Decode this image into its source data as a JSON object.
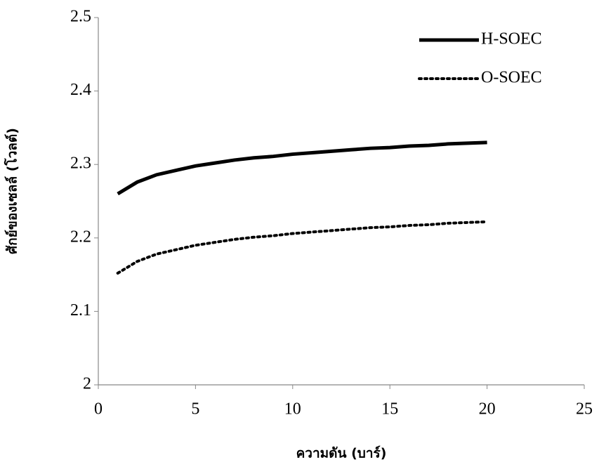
{
  "chart_data": {
    "type": "line",
    "x_label": "ความดัน (บาร์)",
    "y_label": "ศักย์ของเซลล์ (โวลต์)",
    "x": [
      1,
      2,
      3,
      4,
      5,
      6,
      7,
      8,
      9,
      10,
      11,
      12,
      13,
      14,
      15,
      16,
      17,
      18,
      19,
      20
    ],
    "series": [
      {
        "name": "H-SOEC",
        "color": "#000000",
        "style": "solid",
        "values": [
          2.26,
          2.276,
          2.286,
          2.292,
          2.298,
          2.302,
          2.306,
          2.309,
          2.311,
          2.314,
          2.316,
          2.318,
          2.32,
          2.322,
          2.323,
          2.325,
          2.326,
          2.328,
          2.329,
          2.33
        ]
      },
      {
        "name": "O-SOEC",
        "color": "#000000",
        "style": "dotted",
        "values": [
          2.152,
          2.168,
          2.178,
          2.184,
          2.19,
          2.194,
          2.198,
          2.201,
          2.203,
          2.206,
          2.208,
          2.21,
          2.212,
          2.214,
          2.215,
          2.217,
          2.218,
          2.22,
          2.221,
          2.222
        ]
      }
    ],
    "xlim": [
      0,
      25
    ],
    "xticks": [
      0,
      5,
      10,
      15,
      20,
      25
    ],
    "ylim": [
      2,
      2.5
    ],
    "yticks": [
      2,
      2.1,
      2.2,
      2.3,
      2.4,
      2.5
    ],
    "grid": false,
    "legend": "top-right"
  }
}
